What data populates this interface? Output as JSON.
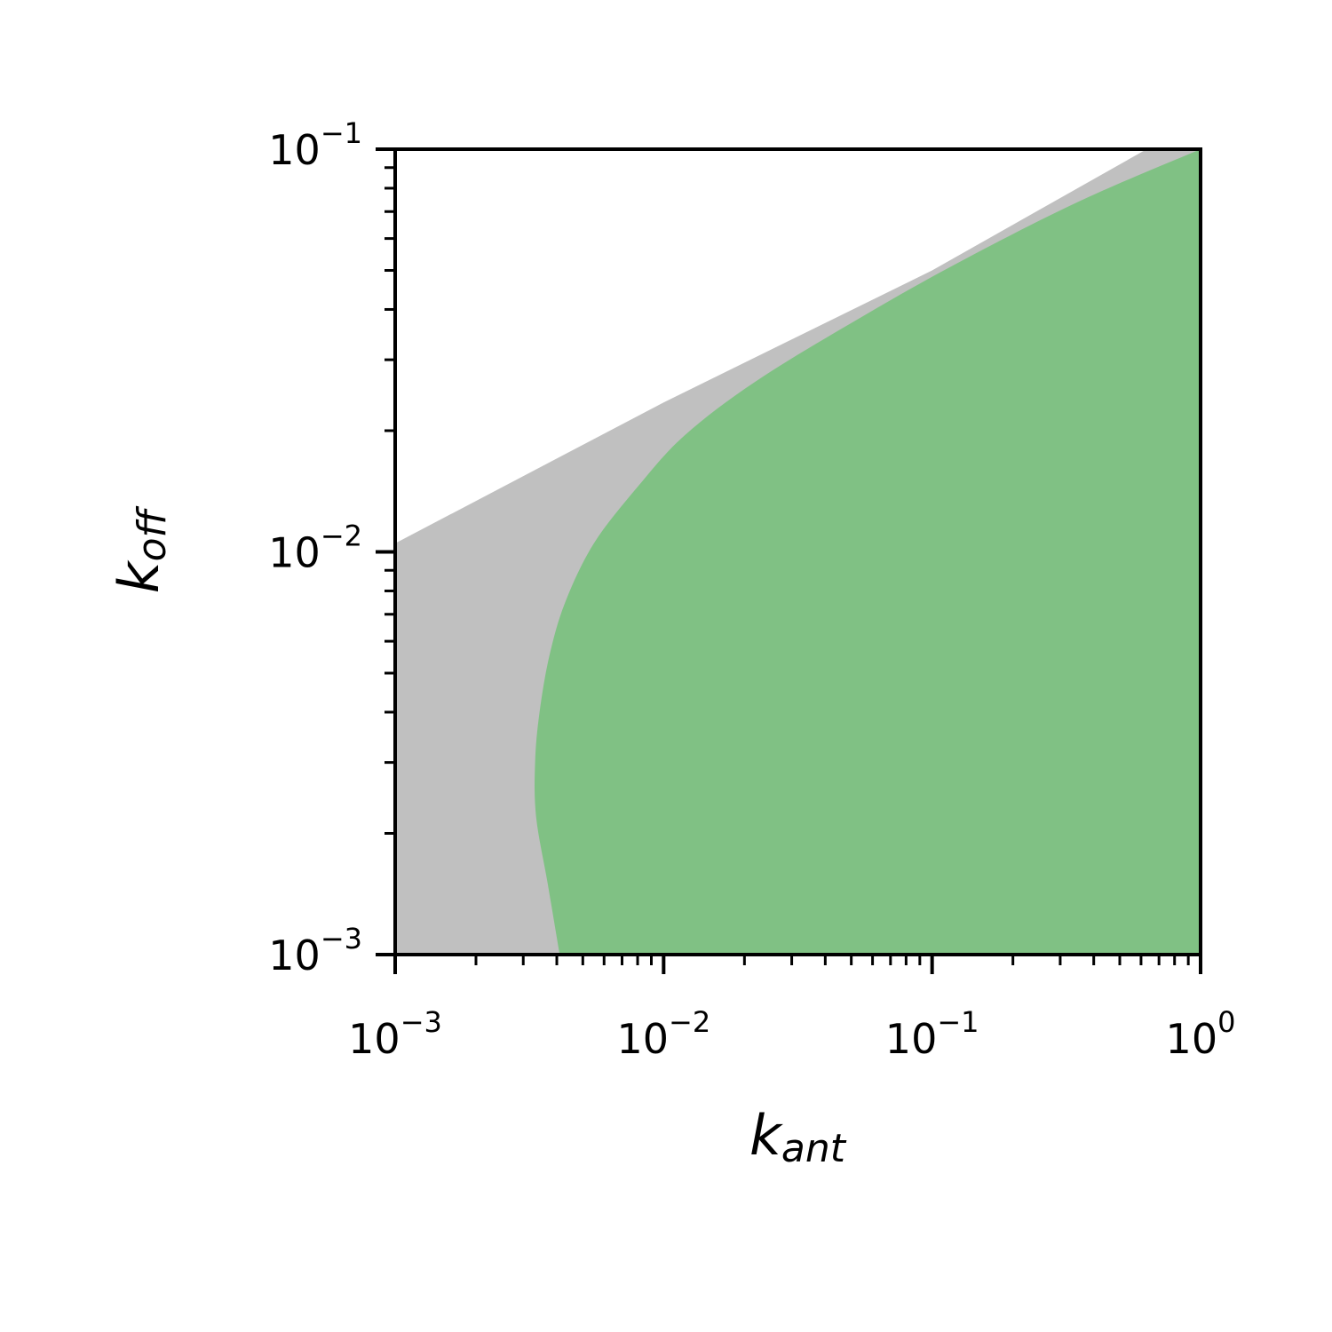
{
  "chart_data": {
    "type": "area",
    "title": "",
    "xlabel": {
      "base": "k",
      "subscript": "ant"
    },
    "ylabel": {
      "base": "k",
      "subscript": "off"
    },
    "xscale": "log",
    "yscale": "log",
    "xlim": [
      0.001,
      1
    ],
    "ylim": [
      0.001,
      0.1
    ],
    "grid": false,
    "x_ticks": [
      {
        "value": 0.001,
        "base": "10",
        "exp": "−3"
      },
      {
        "value": 0.01,
        "base": "10",
        "exp": "−2"
      },
      {
        "value": 0.1,
        "base": "10",
        "exp": "−1"
      },
      {
        "value": 1,
        "base": "10",
        "exp": "0"
      }
    ],
    "y_ticks": [
      {
        "value": 0.001,
        "base": "10",
        "exp": "−3"
      },
      {
        "value": 0.01,
        "base": "10",
        "exp": "−2"
      },
      {
        "value": 0.1,
        "base": "10",
        "exp": "−1"
      }
    ],
    "regions": [
      {
        "color": "#c0c0c0",
        "upper_boundary": [
          [
            0.001,
            0.0105
          ],
          [
            0.01,
            0.0235
          ],
          [
            0.1,
            0.05
          ],
          [
            0.63,
            0.1
          ]
        ]
      },
      {
        "color": "#80c184",
        "left_boundary": [
          [
            0.0041,
            0.001
          ],
          [
            0.0037,
            0.0015
          ],
          [
            0.00335,
            0.0022
          ],
          [
            0.00332,
            0.003
          ],
          [
            0.00345,
            0.004
          ],
          [
            0.00375,
            0.0055
          ],
          [
            0.0043,
            0.0075
          ],
          [
            0.0055,
            0.0105
          ],
          [
            0.008,
            0.0145
          ],
          [
            0.012,
            0.0195
          ],
          [
            0.022,
            0.0265
          ],
          [
            0.05,
            0.037
          ],
          [
            0.12,
            0.0515
          ],
          [
            0.35,
            0.074
          ],
          [
            1,
            0.1
          ]
        ]
      }
    ]
  }
}
